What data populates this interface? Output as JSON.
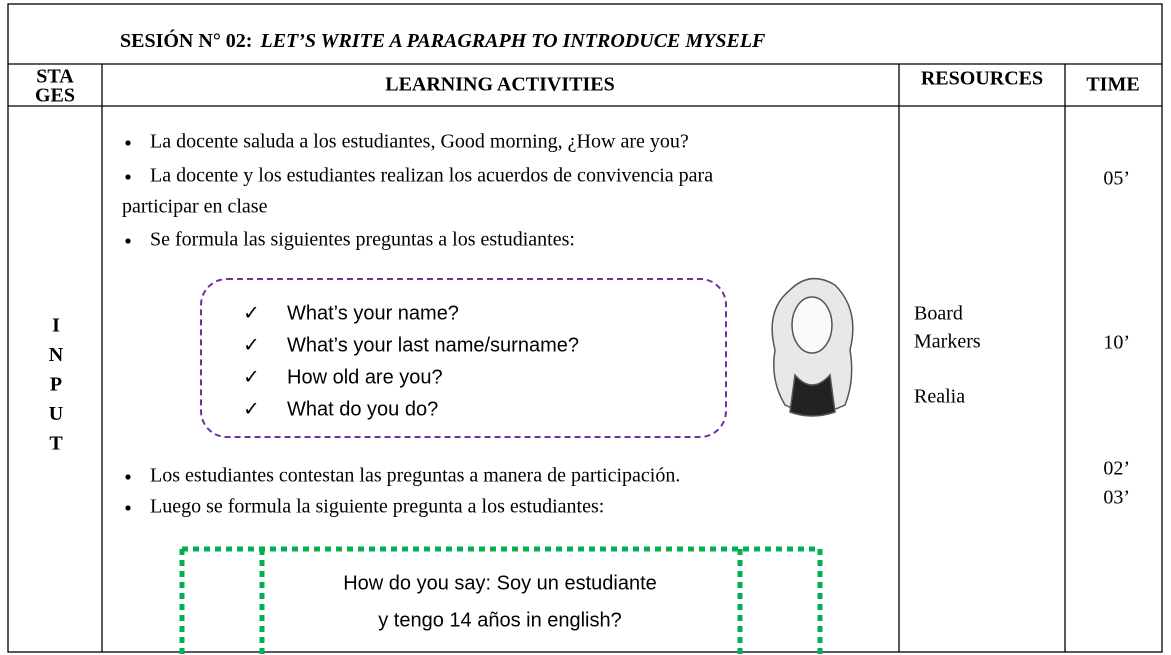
{
  "title": {
    "prefix": "SESIÓN N° 02:",
    "main": "LET’S WRITE A PARAGRAPH TO INTRODUCE MYSELF"
  },
  "headers": {
    "stages": [
      "STA",
      "GES"
    ],
    "activities": "LEARNING ACTIVITIES",
    "resources": "RESOURCES",
    "time": "TIME"
  },
  "stage": [
    "I",
    "N",
    "P",
    "U",
    "T"
  ],
  "activities": {
    "bullets_1": [
      "La docente saluda a los estudiantes, Good morning, ¿How are you?",
      "La docente y los estudiantes realizan los acuerdos de convivencia para",
      "participar en clase",
      "Se formula las siguientes preguntas a los estudiantes:"
    ],
    "questions": [
      "What’s your name?",
      "What’s your last name/surname?",
      "How old are you?",
      "What do you do?"
    ],
    "bullets_2": [
      "Los estudiantes contestan las preguntas a manera de participación.",
      "Luego se formula la siguiente pregunta a los estudiantes:"
    ],
    "question_box": [
      "How do you say: Soy un estudiante",
      "y tengo 14 años in english?"
    ]
  },
  "resources": [
    "Board",
    "Markers",
    "Realia"
  ],
  "times": [
    "05’",
    "10’",
    "02’",
    "03’"
  ]
}
